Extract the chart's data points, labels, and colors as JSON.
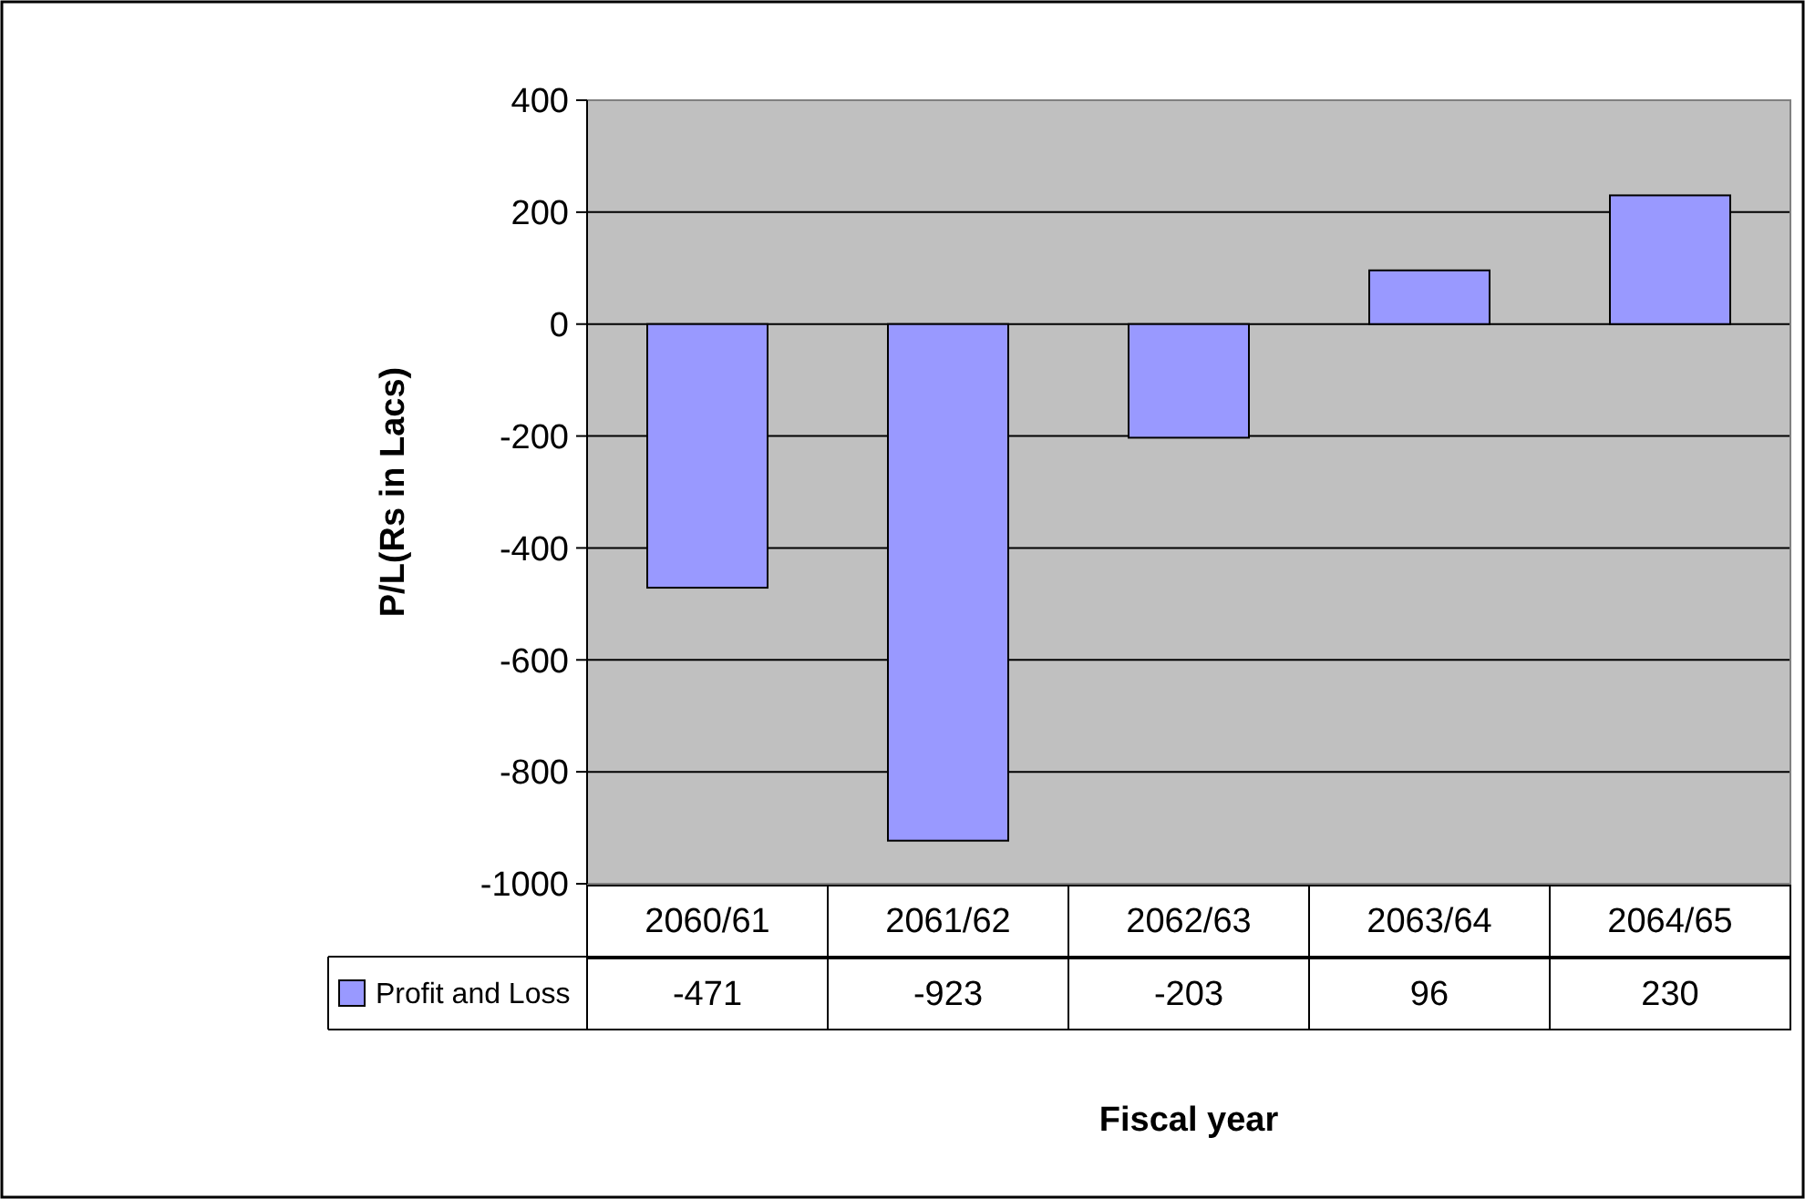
{
  "chart_data": {
    "type": "bar",
    "ylabel": "P/L(Rs in Lacs)",
    "xlabel": "Fiscal year",
    "categories": [
      "2060/61",
      "2061/62",
      "2062/63",
      "2063/64",
      "2064/65"
    ],
    "series": [
      {
        "name": "Profit and Loss",
        "color": "#9999ff",
        "values": [
          -471,
          -923,
          -203,
          96,
          230
        ]
      }
    ],
    "ylim": [
      -1000,
      400
    ],
    "yticks": [
      -1000,
      -800,
      -600,
      -400,
      -200,
      0,
      200,
      400
    ],
    "grid": "y",
    "legend": "bottom left",
    "data_labels": true
  }
}
